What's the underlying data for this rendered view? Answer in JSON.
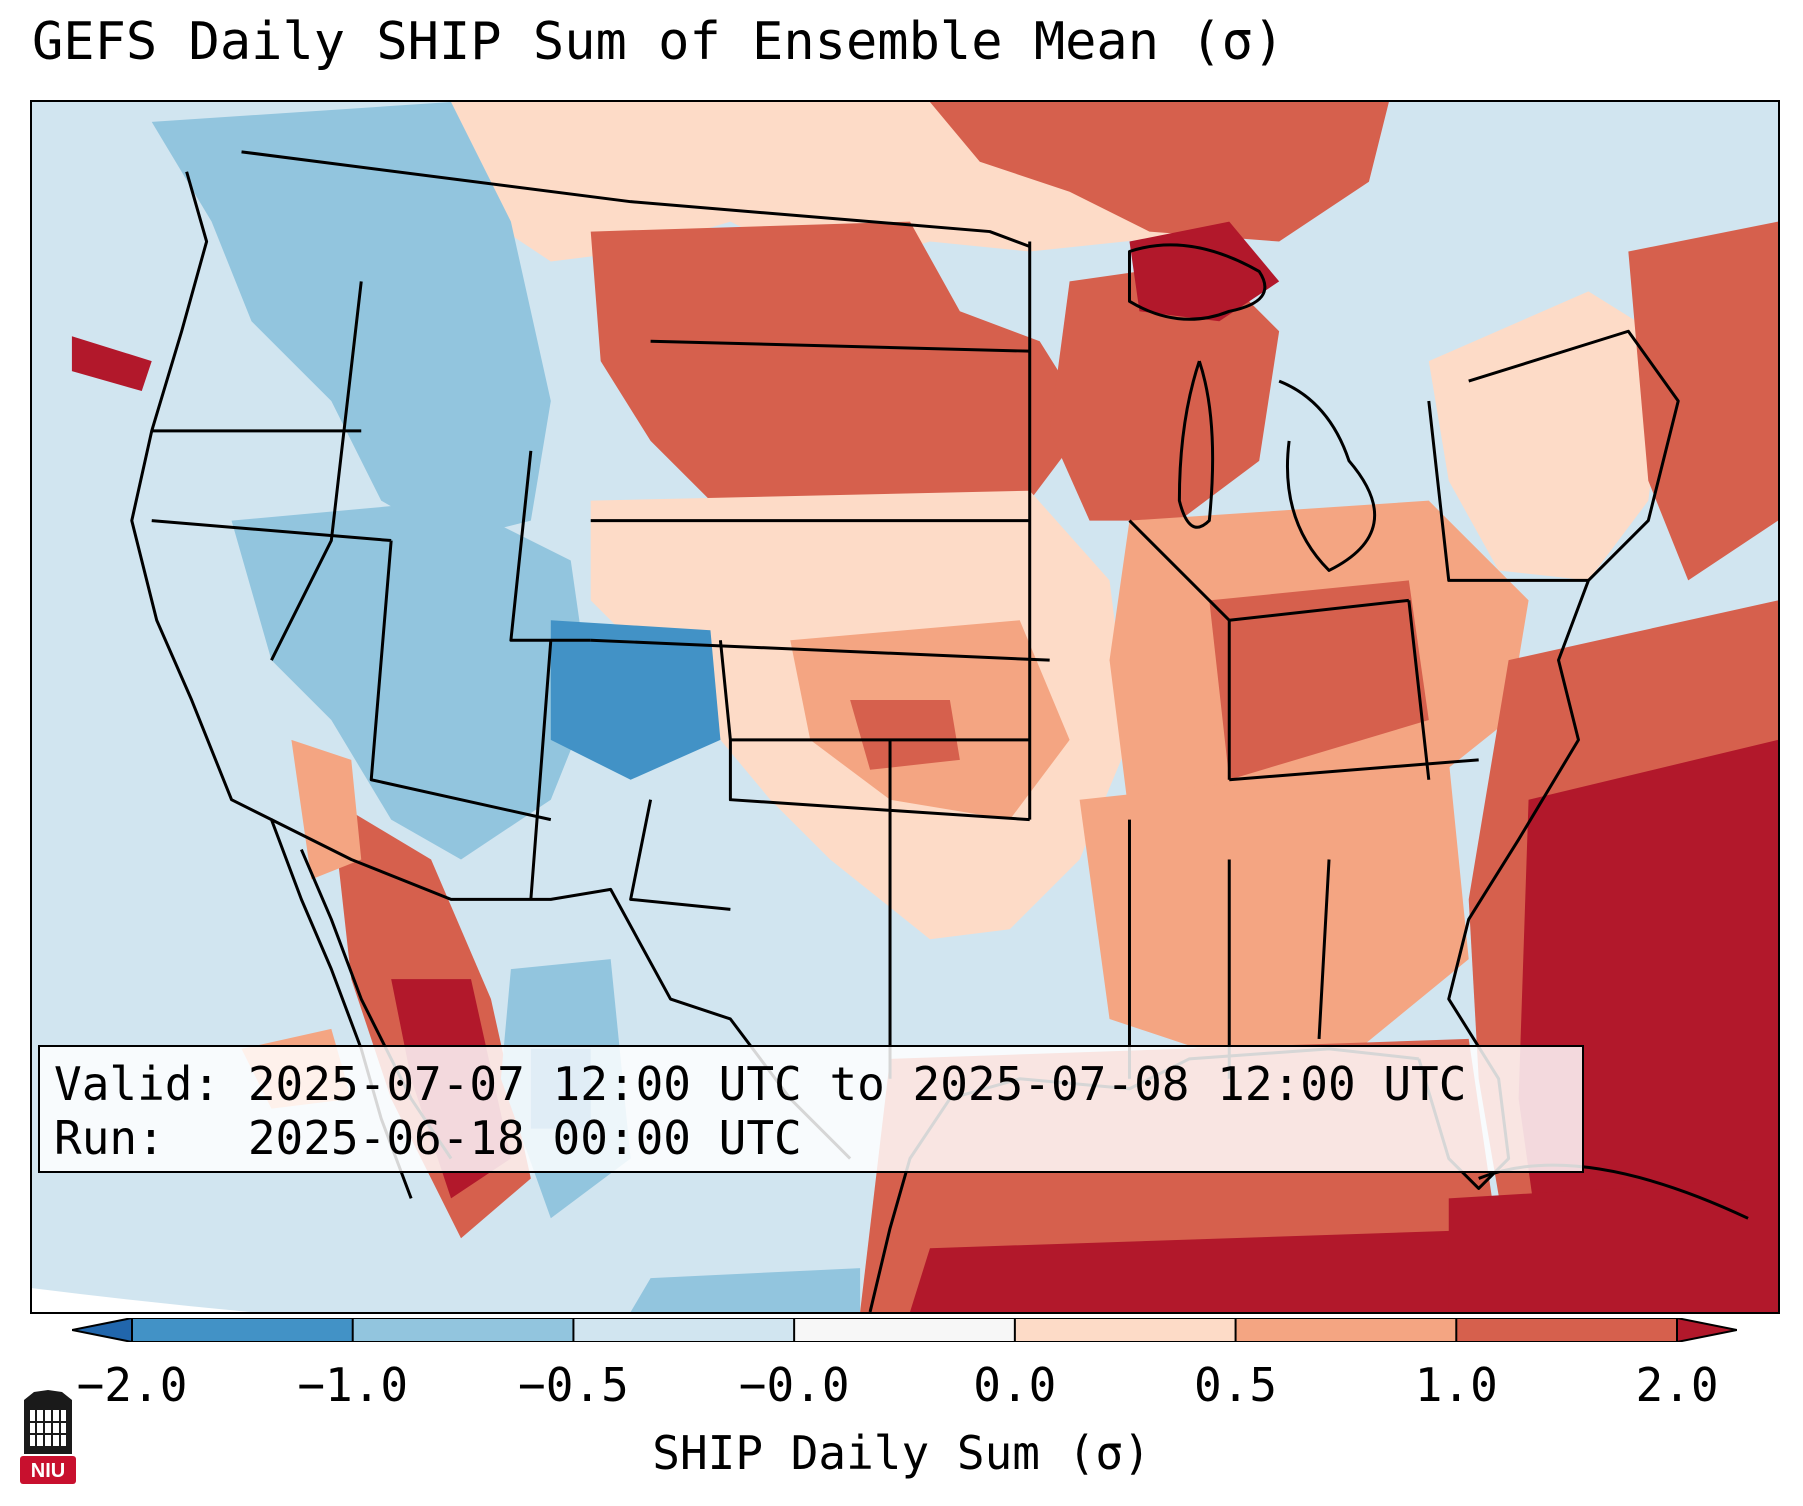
{
  "title": "GEFS Daily SHIP Sum of Ensemble Mean (σ)",
  "info_box": {
    "valid": "Valid: 2025-07-07 12:00 UTC to 2025-07-08 12:00 UTC",
    "run": "Run:   2025-06-18 00:00 UTC"
  },
  "colorbar": {
    "label": "SHIP Daily Sum (σ)",
    "tick_labels": [
      "−2.0",
      "−1.0",
      "−0.5",
      "−0.0",
      "0.0",
      "0.5",
      "1.0",
      "2.0"
    ],
    "bins": [
      {
        "from": "-2.0",
        "to": "-1.0",
        "color": "#4292c6"
      },
      {
        "from": "-1.0",
        "to": "-0.5",
        "color": "#92c5de"
      },
      {
        "from": "-0.5",
        "to": "-0.0",
        "color": "#d1e5f0"
      },
      {
        "from": "-0.0",
        "to": "0.0",
        "color": "#f7f7f7"
      },
      {
        "from": "0.0",
        "to": "0.5",
        "color": "#fddbc7"
      },
      {
        "from": "0.5",
        "to": "1.0",
        "color": "#f4a582"
      },
      {
        "from": "1.0",
        "to": "2.0",
        "color": "#d6604d"
      }
    ],
    "under_color": "#2166ac",
    "over_color": "#b2182b",
    "extend": "both"
  },
  "map": {
    "region": "Contiguous United States",
    "projection": "Lambert Conformal",
    "boundaries": [
      "coastlines",
      "country borders",
      "state borders"
    ]
  },
  "logo": {
    "text": "NIU",
    "color": "#c8102e"
  }
}
